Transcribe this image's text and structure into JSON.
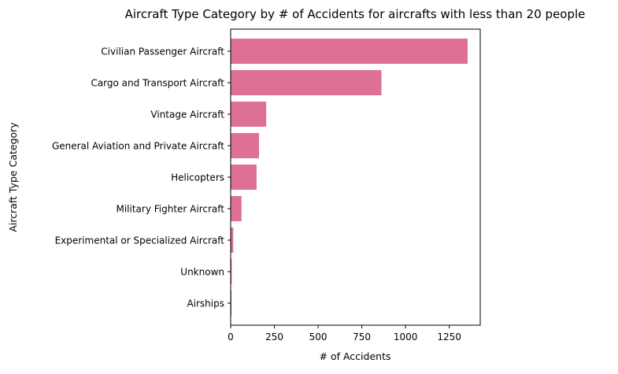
{
  "chart_data": {
    "type": "bar",
    "orientation": "horizontal",
    "title": "Aircraft Type Category by # of Accidents for aircrafts with less than 20 people",
    "xlabel": "# of Accidents",
    "ylabel": "Aircraft Type Category",
    "categories": [
      "Civilian Passenger Aircraft",
      "Cargo and Transport Aircraft",
      "Vintage Aircraft",
      "General Aviation and Private Aircraft",
      "Helicopters",
      "Military Fighter Aircraft",
      "Experimental or Specialized Aircraft",
      "Unknown",
      "Airships"
    ],
    "values": [
      1355,
      862,
      203,
      162,
      148,
      62,
      15,
      6,
      5
    ],
    "xlim": [
      0,
      1427
    ],
    "xticks": [
      0,
      250,
      500,
      750,
      1000,
      1250
    ],
    "xtick_labels": [
      "0",
      "250",
      "500",
      "750",
      "1000",
      "1250"
    ],
    "bar_color": "#dd7093",
    "grid": false,
    "legend": "none"
  }
}
